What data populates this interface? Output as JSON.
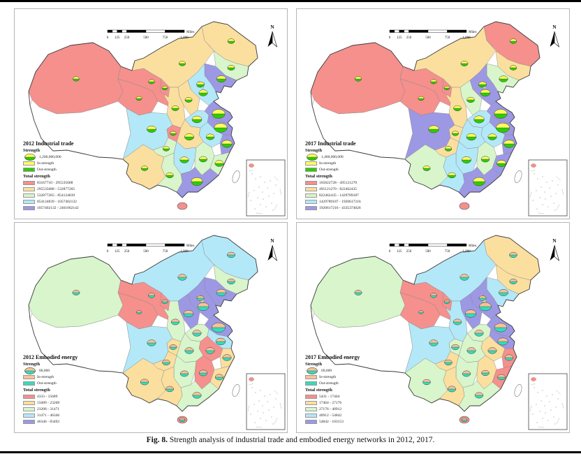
{
  "figure": {
    "caption_label": "Fig. 8.",
    "caption_text": "Strength analysis of industrial trade and embodied energy networks in 2012, 2017."
  },
  "north_label": "N",
  "scalebar": {
    "ticks": [
      "0",
      "125",
      "250",
      "500",
      "750",
      "1,000"
    ],
    "tick_miles": [
      0,
      125,
      250,
      500,
      750,
      1000
    ],
    "unit": "Miles"
  },
  "colors": {
    "class1": "#F5908D",
    "class2": "#FBDF9F",
    "class3": "#D8F5CC",
    "class4": "#B3E8F8",
    "class5": "#9D98E4",
    "it_in": "#FFFF5C",
    "it_out": "#2ECC00",
    "ee_in": "#F7C299",
    "ee_out": "#35DCB9",
    "nodata": "#FFFFFF"
  },
  "panels": [
    {
      "id": "it2012",
      "type": "industrial",
      "title": "2012 Industrial trade",
      "strength_label": "Strength",
      "strength_value": "1,200,000,000",
      "in_label": "In-strength",
      "out_label": "Out-strength",
      "total_label": "Total strength",
      "classes": [
        "83167710 - 295535688",
        "295535688 - 532877265",
        "532877265 - 854124839",
        "854124839 - 1057402132",
        "1057402132 - 2461062142"
      ],
      "province_classes": {
        "Xinjiang": 1,
        "Tibet": 0,
        "Qinghai": 1,
        "Gansu": 1,
        "InnerMongolia": 2,
        "Heilongjiang": 2,
        "Jilin": 3,
        "Liaoning": 5,
        "Hebei": 4,
        "Shanxi": 2,
        "Shandong": 5,
        "Shaanxi": 2,
        "Henan": 4,
        "Jiangsu": 5,
        "Anhui": 4,
        "Hubei": 2,
        "Sichuan": 4,
        "Guizhou": 3,
        "Yunnan": 2,
        "Hunan": 4,
        "Jiangxi": 3,
        "Zhejiang": 5,
        "Fujian": 3,
        "Guangdong": 5,
        "Guangxi": 3,
        "Ningxia": 1,
        "Chongqing": 1,
        "Beijing": 4,
        "Hainan": 1
      },
      "symbols": [
        [
          "Xinjiang",
          0.28
        ],
        [
          "Qinghai",
          0.22
        ],
        [
          "Gansu",
          0.25
        ],
        [
          "Ningxia",
          0.2
        ],
        [
          "InnerMongolia",
          0.3
        ],
        [
          "Heilongjiang",
          0.32
        ],
        [
          "Jilin",
          0.35
        ],
        [
          "Liaoning",
          0.55
        ],
        [
          "Beijing",
          0.4
        ],
        [
          "Hebei",
          0.5
        ],
        [
          "Shanxi",
          0.35
        ],
        [
          "Shandong",
          0.9
        ],
        [
          "Henan",
          0.6
        ],
        [
          "Jiangsu",
          0.9
        ],
        [
          "Anhui",
          0.45
        ],
        [
          "Zhejiang",
          0.65
        ],
        [
          "Hubei",
          0.55
        ],
        [
          "Chongqing",
          0.25
        ],
        [
          "Sichuan",
          0.55
        ],
        [
          "Shaanxi",
          0.35
        ],
        [
          "Guizhou",
          0.3
        ],
        [
          "Yunnan",
          0.32
        ],
        [
          "Hunan",
          0.5
        ],
        [
          "Jiangxi",
          0.42
        ],
        [
          "Fujian",
          0.5
        ],
        [
          "Guangdong",
          0.75
        ],
        [
          "Guangxi",
          0.38
        ]
      ]
    },
    {
      "id": "it2017",
      "type": "industrial",
      "title": "2017 Industrial trade",
      "strength_label": "Strength",
      "strength_value": "1,400,000,000",
      "in_label": "In-strength",
      "out_label": "Out-strength",
      "total_label": "Total strength",
      "classes": [
        "165822728 - 495121270",
        "495121270 - 822462435",
        "822462435 - 1429789187",
        "1429789187 - 1920617216",
        "1920617216 - 4335374026"
      ],
      "province_classes": {
        "Xinjiang": 1,
        "Tibet": 0,
        "Qinghai": 1,
        "Gansu": 1,
        "InnerMongolia": 2,
        "Heilongjiang": 1,
        "Jilin": 2,
        "Liaoning": 3,
        "Hebei": 5,
        "Shanxi": 3,
        "Shandong": 5,
        "Shaanxi": 2,
        "Henan": 4,
        "Jiangsu": 5,
        "Anhui": 4,
        "Hubei": 4,
        "Sichuan": 5,
        "Guizhou": 2,
        "Yunnan": 3,
        "Hunan": 4,
        "Jiangxi": 3,
        "Zhejiang": 5,
        "Fujian": 5,
        "Guangdong": 5,
        "Guangxi": 4,
        "Ningxia": 1,
        "Chongqing": 2,
        "Beijing": 3,
        "Hainan": 1
      },
      "symbols": [
        [
          "Xinjiang",
          0.3
        ],
        [
          "Qinghai",
          0.22
        ],
        [
          "Gansu",
          0.26
        ],
        [
          "Ningxia",
          0.2
        ],
        [
          "InnerMongolia",
          0.35
        ],
        [
          "Heilongjiang",
          0.3
        ],
        [
          "Jilin",
          0.32
        ],
        [
          "Liaoning",
          0.5
        ],
        [
          "Beijing",
          0.42
        ],
        [
          "Hebei",
          0.6
        ],
        [
          "Shanxi",
          0.4
        ],
        [
          "Shandong",
          0.9
        ],
        [
          "Henan",
          0.65
        ],
        [
          "Jiangsu",
          0.95
        ],
        [
          "Anhui",
          0.5
        ],
        [
          "Zhejiang",
          0.7
        ],
        [
          "Hubei",
          0.6
        ],
        [
          "Chongqing",
          0.3
        ],
        [
          "Sichuan",
          0.65
        ],
        [
          "Shaanxi",
          0.4
        ],
        [
          "Guizhou",
          0.32
        ],
        [
          "Yunnan",
          0.35
        ],
        [
          "Hunan",
          0.55
        ],
        [
          "Jiangxi",
          0.45
        ],
        [
          "Fujian",
          0.55
        ],
        [
          "Guangdong",
          0.8
        ],
        [
          "Guangxi",
          0.4
        ]
      ]
    },
    {
      "id": "ee2012",
      "type": "embodied",
      "title": "2012 Embodied energy",
      "strength_label": "Strength",
      "strength_value": "80,000",
      "in_label": "In-strength",
      "out_label": "Out-strength",
      "total_label": "Total strength",
      "classes": [
        "4333 - 15689",
        "15689 - 23268",
        "23268 - 31471",
        "31471 - 46346",
        "46346 - 83492"
      ],
      "province_classes": {
        "Xinjiang": 3,
        "Tibet": 0,
        "Qinghai": 1,
        "Gansu": 1,
        "InnerMongolia": 4,
        "Heilongjiang": 4,
        "Jilin": 3,
        "Liaoning": 5,
        "Hebei": 5,
        "Shanxi": 5,
        "Shandong": 5,
        "Shaanxi": 3,
        "Henan": 3,
        "Jiangsu": 4,
        "Anhui": 1,
        "Hubei": 3,
        "Sichuan": 4,
        "Guizhou": 2,
        "Yunnan": 2,
        "Hunan": 3,
        "Jiangxi": 1,
        "Zhejiang": 2,
        "Fujian": 2,
        "Guangdong": 3,
        "Guangxi": 2,
        "Ningxia": 1,
        "Chongqing": 2,
        "Beijing": 2,
        "Hainan": 1
      },
      "symbols": [
        [
          "Xinjiang",
          0.35
        ],
        [
          "Qinghai",
          0.15
        ],
        [
          "Gansu",
          0.3
        ],
        [
          "Ningxia",
          0.22
        ],
        [
          "InnerMongolia",
          0.5
        ],
        [
          "Heilongjiang",
          0.42
        ],
        [
          "Jilin",
          0.4
        ],
        [
          "Liaoning",
          0.6
        ],
        [
          "Beijing",
          0.35
        ],
        [
          "Hebei",
          0.75
        ],
        [
          "Shanxi",
          0.6
        ],
        [
          "Shandong",
          0.95
        ],
        [
          "Henan",
          0.5
        ],
        [
          "Jiangsu",
          0.6
        ],
        [
          "Anhui",
          0.5
        ],
        [
          "Zhejiang",
          0.5
        ],
        [
          "Hubei",
          0.5
        ],
        [
          "Chongqing",
          0.35
        ],
        [
          "Sichuan",
          0.5
        ],
        [
          "Shaanxi",
          0.45
        ],
        [
          "Guizhou",
          0.4
        ],
        [
          "Yunnan",
          0.45
        ],
        [
          "Hunan",
          0.45
        ],
        [
          "Jiangxi",
          0.45
        ],
        [
          "Fujian",
          0.45
        ],
        [
          "Guangdong",
          0.5
        ],
        [
          "Guangxi",
          0.42
        ],
        [
          "Hainan",
          0.2
        ]
      ]
    },
    {
      "id": "ee2017",
      "type": "embodied",
      "title": "2017 Embodied energy",
      "strength_label": "Strength",
      "strength_value": "69,000",
      "in_label": "In-strength",
      "out_label": "Out-strength",
      "total_label": "Total strength",
      "classes": [
        "5431 - 17464",
        "17464 - 27176",
        "27176 - 40912",
        "40912 - 54842",
        "54842 - 103153"
      ],
      "province_classes": {
        "Xinjiang": 3,
        "Tibet": 0,
        "Qinghai": 1,
        "Gansu": 1,
        "InnerMongolia": 4,
        "Heilongjiang": 2,
        "Jilin": 2,
        "Liaoning": 4,
        "Hebei": 5,
        "Shanxi": 5,
        "Shandong": 5,
        "Shaanxi": 4,
        "Henan": 3,
        "Jiangsu": 5,
        "Anhui": 2,
        "Hubei": 3,
        "Sichuan": 4,
        "Guizhou": 2,
        "Yunnan": 3,
        "Hunan": 3,
        "Jiangxi": 2,
        "Zhejiang": 1,
        "Fujian": 1,
        "Guangdong": 3,
        "Guangxi": 2,
        "Ningxia": 1,
        "Chongqing": 3,
        "Beijing": 2,
        "Hainan": 1
      },
      "symbols": [
        [
          "Xinjiang",
          0.35
        ],
        [
          "Qinghai",
          0.12
        ],
        [
          "Gansu",
          0.28
        ],
        [
          "Ningxia",
          0.2
        ],
        [
          "InnerMongolia",
          0.5
        ],
        [
          "Heilongjiang",
          0.4
        ],
        [
          "Jilin",
          0.38
        ],
        [
          "Liaoning",
          0.55
        ],
        [
          "Beijing",
          0.35
        ],
        [
          "Hebei",
          0.8
        ],
        [
          "Shanxi",
          0.7
        ],
        [
          "Shandong",
          0.85
        ],
        [
          "Henan",
          0.5
        ],
        [
          "Jiangsu",
          0.65
        ],
        [
          "Anhui",
          0.5
        ],
        [
          "Zhejiang",
          0.45
        ],
        [
          "Hubei",
          0.5
        ],
        [
          "Chongqing",
          0.4
        ],
        [
          "Sichuan",
          0.5
        ],
        [
          "Shaanxi",
          0.45
        ],
        [
          "Guizhou",
          0.4
        ],
        [
          "Yunnan",
          0.4
        ],
        [
          "Hunan",
          0.45
        ],
        [
          "Jiangxi",
          0.4
        ],
        [
          "Fujian",
          0.4
        ],
        [
          "Guangdong",
          0.45
        ],
        [
          "Guangxi",
          0.45
        ],
        [
          "Hainan",
          0.2
        ]
      ]
    }
  ]
}
